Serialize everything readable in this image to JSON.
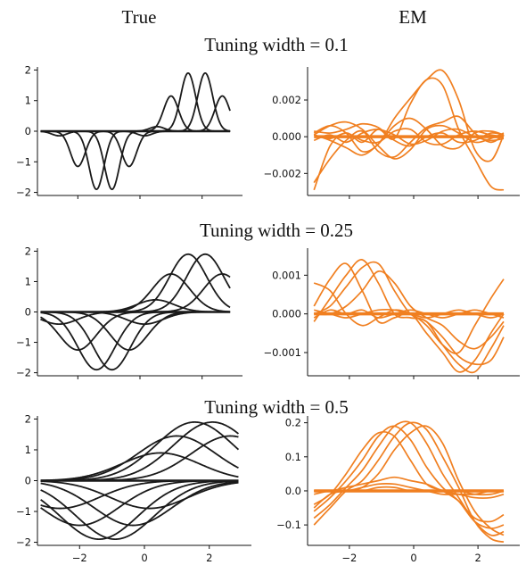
{
  "headers": {
    "left": "True",
    "right": "EM"
  },
  "colors": {
    "true_line": "#1a1a1a",
    "em_line": "#f07f20",
    "axis": "#111111"
  },
  "chart_data": [
    {
      "type": "line",
      "panel": "true",
      "title": "Tuning width = 0.1",
      "xlim": [
        -3.3,
        3.3
      ],
      "ylim": [
        -2.1,
        2.1
      ],
      "yticks": [
        -2,
        -1,
        0,
        1,
        2
      ],
      "ytick_labels": [
        "−2",
        "−1",
        "0",
        "1",
        "2"
      ],
      "xticks": [
        -2,
        0,
        2
      ],
      "xtick_labels": [
        "",
        "",
        ""
      ],
      "width": 0.1,
      "series": [
        {
          "values": [
            {
              "center": -2.6,
              "amp": -0.15
            }
          ]
        },
        {
          "values": [
            {
              "center": -2.0,
              "amp": -1.15
            }
          ]
        },
        {
          "values": [
            {
              "center": -1.4,
              "amp": -1.9
            }
          ]
        },
        {
          "values": [
            {
              "center": -0.9,
              "amp": -1.9
            }
          ]
        },
        {
          "values": [
            {
              "center": -0.35,
              "amp": -1.15
            }
          ]
        },
        {
          "values": [
            {
              "center": 0.15,
              "amp": -0.15
            }
          ]
        },
        {
          "values": [
            {
              "center": 0.55,
              "amp": 0.15
            }
          ]
        },
        {
          "values": [
            {
              "center": 1.0,
              "amp": 1.15
            }
          ]
        },
        {
          "values": [
            {
              "center": 1.55,
              "amp": 1.9
            }
          ]
        },
        {
          "values": [
            {
              "center": 2.1,
              "amp": 1.9
            }
          ]
        },
        {
          "values": [
            {
              "center": 2.65,
              "amp": 1.15
            }
          ]
        }
      ]
    },
    {
      "type": "line",
      "panel": "em",
      "xlim": [
        -3.3,
        3.3
      ],
      "ylim": [
        -0.0032,
        0.0038
      ],
      "yticks": [
        -0.002,
        0.0,
        0.002
      ],
      "ytick_labels": [
        "−0.002",
        "0.000",
        "0.002"
      ],
      "xticks": [
        -2,
        0,
        2
      ],
      "xtick_labels": [
        "",
        "",
        ""
      ],
      "x": [
        -3.1,
        -2.6,
        -2.1,
        -1.6,
        -1.1,
        -0.6,
        -0.1,
        0.4,
        0.9,
        1.4,
        1.9,
        2.4,
        2.8
      ],
      "series": [
        {
          "values": [
            -0.0029,
            -0.0005,
            0.0002,
            -0.0003,
            0.0004,
            -0.0001,
            0.0018,
            0.0031,
            0.0028,
            0.0004,
            -0.0012,
            -0.0027,
            -0.0029
          ]
        },
        {
          "values": [
            0.0002,
            0.0006,
            0.0002,
            -0.0008,
            -0.0004,
            0.001,
            0.0021,
            0.0031,
            0.0036,
            0.002,
            -0.0007,
            -0.0013,
            0.0001
          ]
        },
        {
          "values": [
            -0.0025,
            -0.0012,
            -0.0002,
            0.0003,
            -0.0008,
            -0.0011,
            -0.0003,
            0.0005,
            0.0008,
            0.0011,
            0.0002,
            -0.0003,
            0.0001
          ]
        },
        {
          "values": [
            0.0001,
            0.0006,
            0.0008,
            0.0004,
            -0.0005,
            -0.0012,
            -0.0007,
            0.0004,
            0.0006,
            0.0002,
            -0.0003,
            -0.0001,
            0.0002
          ]
        },
        {
          "values": [
            0.0001,
            -0.0002,
            -0.0006,
            -0.001,
            -0.0004,
            0.0006,
            0.001,
            0.0004,
            -0.0005,
            -0.0006,
            0.0002,
            0.0003,
            0.0001
          ]
        },
        {
          "values": [
            0.0003,
            0.0002,
            0.0004,
            0.0007,
            0.0005,
            -0.0002,
            -0.0005,
            0.0,
            0.0002,
            -0.0003,
            -0.0002,
            0.0002,
            0.0001
          ]
        },
        {
          "values": [
            -0.0002,
            0.0001,
            -0.0003,
            0.0002,
            0.0004,
            0.0001,
            -0.0004,
            -0.0002,
            0.0003,
            0.0004,
            0.0,
            -0.0002,
            -0.0001
          ]
        },
        {
          "values": [
            0.0001,
            -0.0001,
            0.0002,
            -0.0002,
            -0.0003,
            0.0003,
            0.0004,
            -0.0003,
            -0.0004,
            0.0001,
            0.0003,
            0.0001,
            0.0
          ]
        }
      ]
    },
    {
      "type": "line",
      "panel": "true",
      "title": "Tuning width = 0.25",
      "xlim": [
        -3.3,
        3.3
      ],
      "ylim": [
        -2.1,
        2.1
      ],
      "yticks": [
        -2,
        -1,
        0,
        1,
        2
      ],
      "ytick_labels": [
        "−2",
        "−1",
        "0",
        "1",
        "2"
      ],
      "xticks": [
        -2,
        0,
        2
      ],
      "xtick_labels": [
        "",
        "",
        ""
      ],
      "width": 0.25,
      "series": [
        {
          "values": [
            {
              "center": -2.6,
              "amp": -0.4
            }
          ]
        },
        {
          "values": [
            {
              "center": -2.0,
              "amp": -1.25
            }
          ]
        },
        {
          "values": [
            {
              "center": -1.4,
              "amp": -1.9
            }
          ]
        },
        {
          "values": [
            {
              "center": -0.9,
              "amp": -1.9
            }
          ]
        },
        {
          "values": [
            {
              "center": -0.35,
              "amp": -1.25
            }
          ]
        },
        {
          "values": [
            {
              "center": 0.15,
              "amp": -0.4
            }
          ]
        },
        {
          "values": [
            {
              "center": 0.5,
              "amp": 0.4
            }
          ]
        },
        {
          "values": [
            {
              "center": 1.0,
              "amp": 1.25
            }
          ]
        },
        {
          "values": [
            {
              "center": 1.55,
              "amp": 1.9
            }
          ]
        },
        {
          "values": [
            {
              "center": 2.1,
              "amp": 1.9
            }
          ]
        },
        {
          "values": [
            {
              "center": 2.65,
              "amp": 1.25
            }
          ]
        }
      ]
    },
    {
      "type": "line",
      "panel": "em",
      "xlim": [
        -3.3,
        3.3
      ],
      "ylim": [
        -0.0016,
        0.0017
      ],
      "yticks": [
        -0.001,
        0.0,
        0.001
      ],
      "ytick_labels": [
        "−0.001",
        "0.000",
        "0.001"
      ],
      "xticks": [
        -2,
        0,
        2
      ],
      "xtick_labels": [
        "",
        "",
        ""
      ],
      "x": [
        -3.1,
        -2.6,
        -2.1,
        -1.6,
        -1.1,
        -0.6,
        -0.1,
        0.4,
        0.9,
        1.4,
        1.9,
        2.4,
        2.8
      ],
      "series": [
        {
          "values": [
            0.0008,
            0.0006,
            0.0,
            -0.0003,
            -0.0001,
            0.0001,
            0.0,
            -0.0003,
            -0.0008,
            -0.001,
            -0.0003,
            0.0004,
            0.0009
          ]
        },
        {
          "values": [
            0.0002,
            0.0009,
            0.0013,
            0.0006,
            -0.0002,
            -0.0001,
            0.0,
            -0.0005,
            -0.001,
            -0.0015,
            -0.0012,
            -0.0005,
            0.0
          ]
        },
        {
          "values": [
            -0.0002,
            0.0004,
            0.001,
            0.0014,
            0.0008,
            0.0,
            -0.0001,
            -0.0002,
            -0.0008,
            -0.0013,
            -0.0015,
            -0.0009,
            -0.0003
          ]
        },
        {
          "values": [
            0.0,
            0.0002,
            0.0007,
            0.0012,
            0.0013,
            0.0006,
            0.0,
            -0.0002,
            -0.0006,
            -0.0011,
            -0.0013,
            -0.0012,
            -0.0006
          ]
        },
        {
          "values": [
            0.0,
            0.0,
            0.0002,
            0.0006,
            0.0011,
            0.0008,
            0.0002,
            -0.0001,
            -0.0003,
            -0.0007,
            -0.0009,
            -0.0006,
            -0.0002
          ]
        },
        {
          "values": [
            0.0001,
            0.0,
            -0.0001,
            0.0,
            0.0001,
            0.0001,
            0.0,
            -0.0001,
            0.0,
            0.0001,
            0.0,
            -0.0001,
            0.0
          ]
        },
        {
          "values": [
            -0.0001,
            0.0001,
            0.0,
            0.0001,
            -0.0001,
            0.0,
            0.0001,
            0.0,
            -0.0001,
            0.0,
            0.0001,
            0.0,
            -0.0001
          ]
        }
      ]
    },
    {
      "type": "line",
      "panel": "true",
      "title": "Tuning width = 0.5",
      "xlim": [
        -3.3,
        3.3
      ],
      "ylim": [
        -2.1,
        2.1
      ],
      "yticks": [
        -2,
        -1,
        0,
        1,
        2
      ],
      "ytick_labels": [
        "−2",
        "−1",
        "0",
        "1",
        "2"
      ],
      "xticks": [
        -2,
        0,
        2
      ],
      "xtick_labels": [
        "−2",
        "0",
        "2"
      ],
      "width": 0.5,
      "series": [
        {
          "values": [
            {
              "center": -2.6,
              "amp": -0.9
            }
          ]
        },
        {
          "values": [
            {
              "center": -2.0,
              "amp": -1.45
            }
          ]
        },
        {
          "values": [
            {
              "center": -1.4,
              "amp": -1.9
            }
          ]
        },
        {
          "values": [
            {
              "center": -0.9,
              "amp": -1.9
            }
          ]
        },
        {
          "values": [
            {
              "center": -0.35,
              "amp": -1.45
            }
          ]
        },
        {
          "values": [
            {
              "center": 0.15,
              "amp": -0.9
            }
          ]
        },
        {
          "values": [
            {
              "center": 0.5,
              "amp": 0.9
            }
          ]
        },
        {
          "values": [
            {
              "center": 1.0,
              "amp": 1.45
            }
          ]
        },
        {
          "values": [
            {
              "center": 1.55,
              "amp": 1.9
            }
          ]
        },
        {
          "values": [
            {
              "center": 2.1,
              "amp": 1.9
            }
          ]
        },
        {
          "values": [
            {
              "center": 2.65,
              "amp": 1.45
            }
          ]
        }
      ]
    },
    {
      "type": "line",
      "panel": "em",
      "xlim": [
        -3.3,
        3.3
      ],
      "ylim": [
        -0.16,
        0.22
      ],
      "yticks": [
        -0.1,
        0.0,
        0.1,
        0.2
      ],
      "ytick_labels": [
        "−0.1",
        "0.0",
        "0.1",
        "0.2"
      ],
      "xticks": [
        -2,
        0,
        2
      ],
      "xtick_labels": [
        "−2",
        "0",
        "2"
      ],
      "x": [
        -3.1,
        -2.6,
        -2.1,
        -1.6,
        -1.1,
        -0.6,
        -0.1,
        0.4,
        0.9,
        1.4,
        1.9,
        2.4,
        2.8
      ],
      "series": [
        {
          "values": [
            -0.04,
            -0.01,
            0.05,
            0.12,
            0.17,
            0.16,
            0.09,
            0.02,
            0.0,
            -0.03,
            -0.08,
            -0.09,
            -0.07
          ]
        },
        {
          "values": [
            -0.06,
            -0.02,
            0.03,
            0.09,
            0.16,
            0.19,
            0.15,
            0.07,
            0.01,
            -0.03,
            -0.09,
            -0.11,
            -0.1
          ]
        },
        {
          "values": [
            -0.08,
            -0.04,
            0.01,
            0.06,
            0.13,
            0.19,
            0.2,
            0.14,
            0.05,
            -0.02,
            -0.09,
            -0.13,
            -0.12
          ]
        },
        {
          "values": [
            -0.1,
            -0.05,
            0.0,
            0.03,
            0.09,
            0.16,
            0.2,
            0.18,
            0.1,
            0.01,
            -0.09,
            -0.14,
            -0.15
          ]
        },
        {
          "values": [
            -0.05,
            -0.01,
            0.0,
            0.01,
            0.05,
            0.12,
            0.17,
            0.19,
            0.14,
            0.03,
            -0.06,
            -0.11,
            -0.13
          ]
        },
        {
          "values": [
            0.0,
            0.0,
            0.01,
            0.02,
            0.03,
            0.04,
            0.03,
            0.02,
            0.0,
            -0.01,
            -0.02,
            -0.02,
            -0.01
          ]
        },
        {
          "values": [
            -0.01,
            0.0,
            0.0,
            0.01,
            0.02,
            0.02,
            0.01,
            0.0,
            -0.01,
            -0.01,
            -0.01,
            0.0,
            0.0
          ]
        },
        {
          "values": [
            0.0,
            0.0,
            0.0,
            0.0,
            0.01,
            0.01,
            0.0,
            0.0,
            0.0,
            0.0,
            -0.01,
            -0.01,
            0.0
          ]
        }
      ]
    }
  ]
}
